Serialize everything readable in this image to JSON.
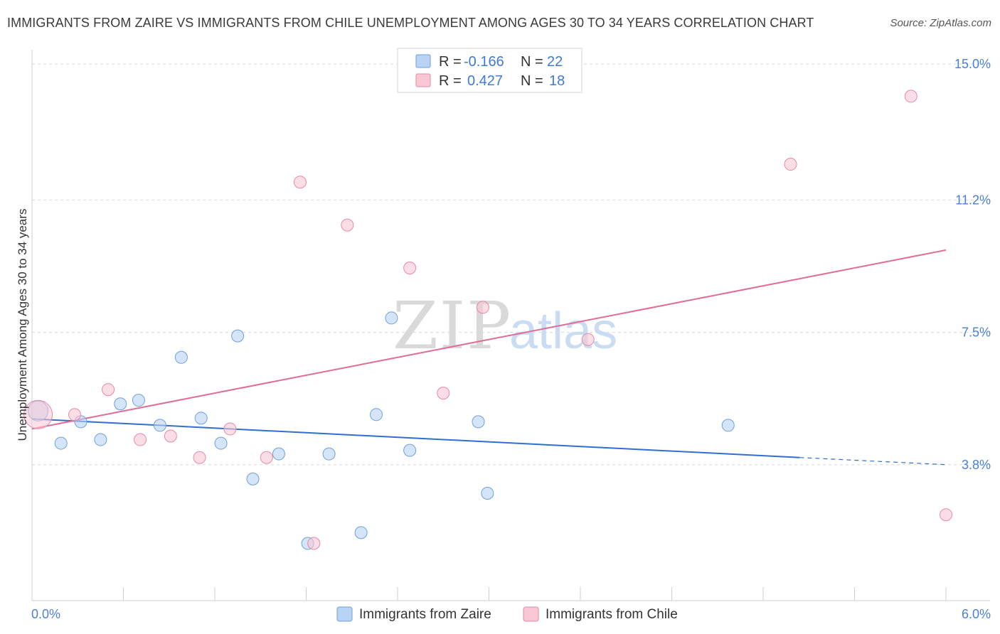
{
  "title": "IMMIGRANTS FROM ZAIRE VS IMMIGRANTS FROM CHILE UNEMPLOYMENT AMONG AGES 30 TO 34 YEARS CORRELATION CHART",
  "source": "Source: ZipAtlas.com",
  "watermark": {
    "part1": "ZIP",
    "part2": "atlas"
  },
  "colors": {
    "zaire_fill": "#b9d3f5",
    "zaire_stroke": "#6f9fdc",
    "zaire_line": "#2f6fcf",
    "chile_fill": "#f9c6d4",
    "chile_stroke": "#e58aa6",
    "chile_line": "#e06b94",
    "grid": "#d8d8d8",
    "tick_text": "#4a7fd4"
  },
  "legend": {
    "rows": [
      {
        "r_label": "R =",
        "r_value": "-0.166",
        "n_label": "N =",
        "n_value": "22"
      },
      {
        "r_label": "R =",
        "r_value": "0.427",
        "n_label": "N =",
        "n_value": "18"
      }
    ]
  },
  "chart_data": {
    "type": "scatter",
    "title": "IMMIGRANTS FROM ZAIRE VS IMMIGRANTS FROM CHILE UNEMPLOYMENT AMONG AGES 30 TO 34 YEARS CORRELATION CHART",
    "xlabel": "",
    "ylabel": "Unemployment Among Ages 30 to 34 years",
    "xlim": [
      0,
      6.0
    ],
    "ylim": [
      0,
      15.4
    ],
    "x_tick_labels": [
      {
        "value": 0,
        "label": "0.0%"
      },
      {
        "value": 6.0,
        "label": "6.0%"
      }
    ],
    "y_tick_labels": [
      {
        "value": 15.0,
        "label": "15.0%"
      },
      {
        "value": 11.2,
        "label": "11.2%"
      },
      {
        "value": 7.5,
        "label": "7.5%"
      },
      {
        "value": 3.8,
        "label": "3.8%"
      }
    ],
    "gridlines_y": [
      15.0,
      11.2,
      7.5,
      3.8
    ],
    "legend_position": "top-center",
    "series": [
      {
        "name": "Immigrants from Zaire",
        "R": -0.166,
        "N": 22,
        "points": [
          {
            "x": 0.04,
            "y": 5.3,
            "big": true
          },
          {
            "x": 0.19,
            "y": 4.4
          },
          {
            "x": 0.32,
            "y": 5.0
          },
          {
            "x": 0.45,
            "y": 4.5
          },
          {
            "x": 0.58,
            "y": 5.5
          },
          {
            "x": 0.7,
            "y": 5.6
          },
          {
            "x": 0.84,
            "y": 4.9
          },
          {
            "x": 0.98,
            "y": 6.8
          },
          {
            "x": 1.11,
            "y": 5.1
          },
          {
            "x": 1.24,
            "y": 4.4
          },
          {
            "x": 1.35,
            "y": 7.4
          },
          {
            "x": 1.45,
            "y": 3.4
          },
          {
            "x": 1.62,
            "y": 4.1
          },
          {
            "x": 1.81,
            "y": 1.6
          },
          {
            "x": 1.95,
            "y": 4.1
          },
          {
            "x": 2.16,
            "y": 1.9
          },
          {
            "x": 2.26,
            "y": 5.2
          },
          {
            "x": 2.36,
            "y": 7.9
          },
          {
            "x": 2.48,
            "y": 4.2
          },
          {
            "x": 2.93,
            "y": 5.0
          },
          {
            "x": 2.99,
            "y": 3.0
          },
          {
            "x": 4.57,
            "y": 4.9
          }
        ],
        "trend": {
          "x_start": 0.0,
          "y_start": 5.08,
          "x_solid_end": 5.04,
          "y_solid_end": 4.0,
          "x_end": 6.0,
          "y_end": 3.8
        }
      },
      {
        "name": "Immigrants from Chile",
        "R": 0.427,
        "N": 18,
        "points": [
          {
            "x": 0.04,
            "y": 5.2,
            "big": true
          },
          {
            "x": 0.28,
            "y": 5.2
          },
          {
            "x": 0.5,
            "y": 5.9
          },
          {
            "x": 0.71,
            "y": 4.5
          },
          {
            "x": 0.91,
            "y": 4.6
          },
          {
            "x": 1.1,
            "y": 4.0
          },
          {
            "x": 1.3,
            "y": 4.8
          },
          {
            "x": 1.54,
            "y": 4.0
          },
          {
            "x": 1.76,
            "y": 11.7
          },
          {
            "x": 1.85,
            "y": 1.6
          },
          {
            "x": 2.07,
            "y": 10.5
          },
          {
            "x": 2.48,
            "y": 9.3
          },
          {
            "x": 2.7,
            "y": 5.8
          },
          {
            "x": 2.96,
            "y": 8.2
          },
          {
            "x": 3.65,
            "y": 7.3
          },
          {
            "x": 4.98,
            "y": 12.2
          },
          {
            "x": 5.77,
            "y": 14.1
          },
          {
            "x": 6.0,
            "y": 2.4
          }
        ],
        "trend": {
          "x_start": 0.0,
          "y_start": 4.8,
          "x_end": 6.0,
          "y_end": 9.8
        }
      }
    ]
  }
}
